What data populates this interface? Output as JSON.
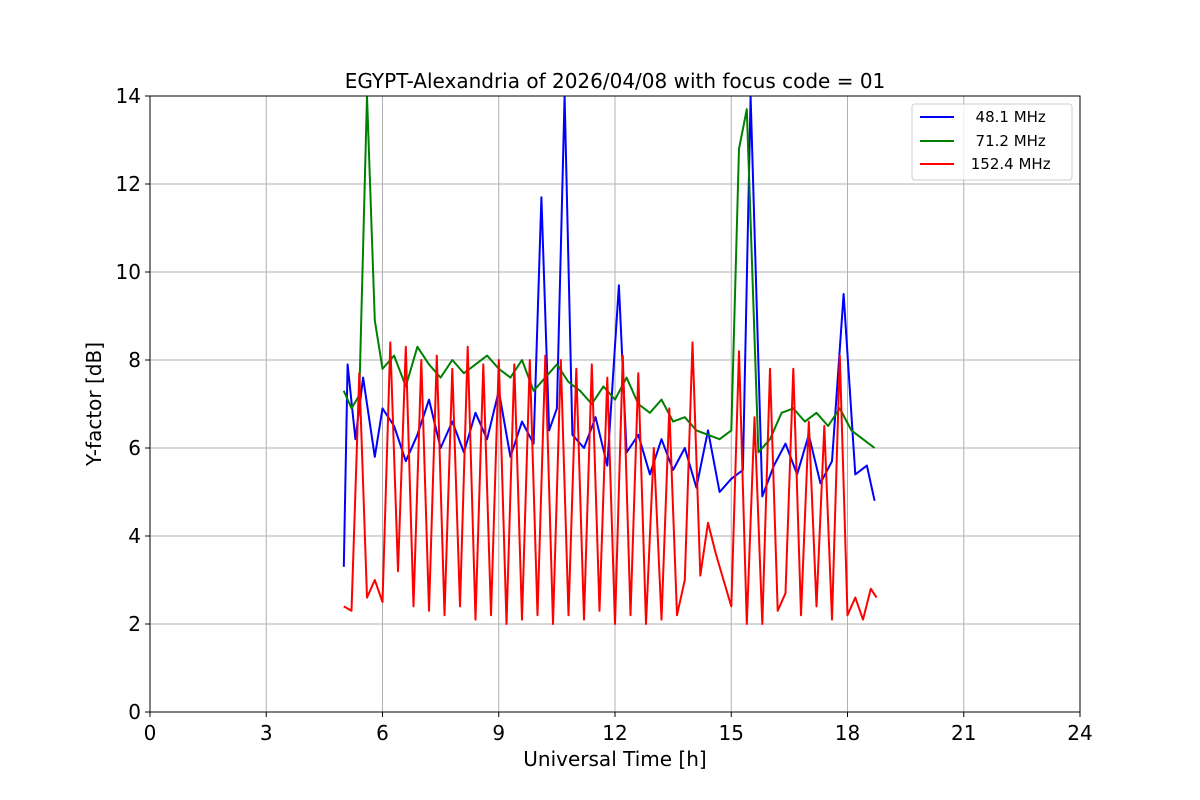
{
  "chart_data": {
    "type": "line",
    "title": "EGYPT-Alexandria of 2026/04/08 with focus code = 01",
    "xlabel": "Universal Time [h]",
    "ylabel": "Y-factor [dB]",
    "xlim": [
      0,
      24
    ],
    "ylim": [
      0,
      14
    ],
    "xticks": [
      0,
      3,
      6,
      9,
      12,
      15,
      18,
      21,
      24
    ],
    "yticks": [
      0,
      2,
      4,
      6,
      8,
      10,
      12,
      14
    ],
    "xtick_labels": [
      "0",
      "3",
      "6",
      "9",
      "12",
      "15",
      "18",
      "21",
      "24"
    ],
    "ytick_labels": [
      "0",
      "2",
      "4",
      "6",
      "8",
      "10",
      "12",
      "14"
    ],
    "grid": true,
    "legend_position": "top-right",
    "series": [
      {
        "name": "48.1 MHz",
        "legend_label": "  48.1 MHz",
        "color": "#0000ff",
        "x": [
          5.0,
          5.1,
          5.3,
          5.5,
          5.8,
          6.0,
          6.3,
          6.6,
          6.9,
          7.2,
          7.5,
          7.8,
          8.1,
          8.4,
          8.7,
          9.0,
          9.3,
          9.6,
          9.9,
          10.1,
          10.3,
          10.5,
          10.7,
          10.9,
          11.2,
          11.5,
          11.8,
          12.1,
          12.3,
          12.6,
          12.9,
          13.2,
          13.5,
          13.8,
          14.1,
          14.4,
          14.7,
          15.0,
          15.3,
          15.5,
          15.8,
          16.1,
          16.4,
          16.7,
          17.0,
          17.3,
          17.6,
          17.9,
          18.2,
          18.5,
          18.7
        ],
        "y": [
          3.3,
          7.9,
          6.2,
          7.6,
          5.8,
          6.9,
          6.5,
          5.7,
          6.3,
          7.1,
          6.0,
          6.6,
          5.9,
          6.8,
          6.2,
          7.3,
          5.8,
          6.6,
          6.1,
          11.7,
          6.4,
          6.9,
          14.0,
          6.3,
          6.0,
          6.7,
          5.6,
          9.7,
          5.9,
          6.3,
          5.4,
          6.2,
          5.5,
          6.0,
          5.1,
          6.4,
          5.0,
          5.3,
          5.5,
          14.0,
          4.9,
          5.6,
          6.1,
          5.4,
          6.3,
          5.2,
          5.7,
          9.5,
          5.4,
          5.6,
          4.8
        ]
      },
      {
        "name": "71.2 MHz",
        "legend_label": "  71.2 MHz",
        "color": "#008000",
        "x": [
          5.0,
          5.2,
          5.4,
          5.6,
          5.8,
          6.0,
          6.3,
          6.6,
          6.9,
          7.2,
          7.5,
          7.8,
          8.1,
          8.4,
          8.7,
          9.0,
          9.3,
          9.6,
          9.9,
          10.2,
          10.5,
          10.8,
          11.1,
          11.4,
          11.7,
          12.0,
          12.3,
          12.6,
          12.9,
          13.2,
          13.5,
          13.8,
          14.1,
          14.4,
          14.7,
          15.0,
          15.2,
          15.4,
          15.7,
          16.0,
          16.3,
          16.6,
          16.9,
          17.2,
          17.5,
          17.8,
          18.1,
          18.4,
          18.7
        ],
        "y": [
          7.3,
          6.9,
          7.2,
          14.0,
          8.9,
          7.8,
          8.1,
          7.4,
          8.3,
          7.9,
          7.6,
          8.0,
          7.7,
          7.9,
          8.1,
          7.8,
          7.6,
          8.0,
          7.3,
          7.6,
          7.9,
          7.5,
          7.3,
          7.0,
          7.4,
          7.1,
          7.6,
          7.0,
          6.8,
          7.1,
          6.6,
          6.7,
          6.4,
          6.3,
          6.2,
          6.4,
          12.8,
          13.7,
          5.9,
          6.2,
          6.8,
          6.9,
          6.6,
          6.8,
          6.5,
          6.9,
          6.4,
          6.2,
          6.0
        ]
      },
      {
        "name": "152.4 MHz",
        "legend_label": " 152.4 MHz",
        "color": "#ff0000",
        "x": [
          5.0,
          5.2,
          5.4,
          5.6,
          5.8,
          6.0,
          6.2,
          6.4,
          6.6,
          6.8,
          7.0,
          7.2,
          7.4,
          7.6,
          7.8,
          8.0,
          8.2,
          8.4,
          8.6,
          8.8,
          9.0,
          9.2,
          9.4,
          9.6,
          9.8,
          10.0,
          10.2,
          10.4,
          10.6,
          10.8,
          11.0,
          11.2,
          11.4,
          11.6,
          11.8,
          12.0,
          12.2,
          12.4,
          12.6,
          12.8,
          13.0,
          13.2,
          13.4,
          13.6,
          13.8,
          14.0,
          14.2,
          14.4,
          14.6,
          14.8,
          15.0,
          15.2,
          15.4,
          15.6,
          15.8,
          16.0,
          16.2,
          16.4,
          16.6,
          16.8,
          17.0,
          17.2,
          17.4,
          17.6,
          17.8,
          18.0,
          18.2,
          18.4,
          18.6,
          18.75
        ],
        "y": [
          2.4,
          2.3,
          7.7,
          2.6,
          3.0,
          2.5,
          8.4,
          3.2,
          8.3,
          2.4,
          8.0,
          2.3,
          8.1,
          2.2,
          7.8,
          2.4,
          8.3,
          2.1,
          7.9,
          2.2,
          8.0,
          2.0,
          7.9,
          2.1,
          8.0,
          2.2,
          8.1,
          2.0,
          8.0,
          2.2,
          7.8,
          2.1,
          7.9,
          2.3,
          7.6,
          2.0,
          8.1,
          2.2,
          7.7,
          2.0,
          6.0,
          2.1,
          6.9,
          2.2,
          3.0,
          8.4,
          3.1,
          4.3,
          3.6,
          3.0,
          2.4,
          8.2,
          2.0,
          6.7,
          2.0,
          7.8,
          2.3,
          2.7,
          7.8,
          2.2,
          6.6,
          2.4,
          6.5,
          2.1,
          8.1,
          2.2,
          2.6,
          2.1,
          2.8,
          2.6
        ]
      }
    ]
  }
}
